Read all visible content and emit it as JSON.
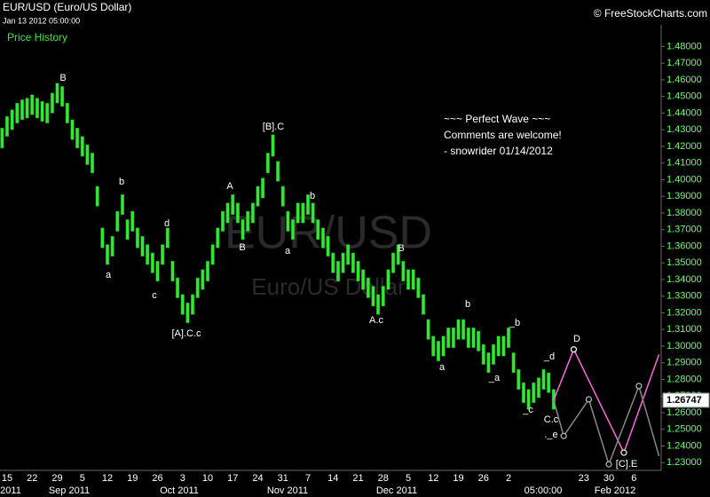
{
  "chart_data": {
    "type": "ohlc",
    "title": "EUR/USD (Euro/US Dollar)",
    "subtitle": "Jan 13 2012 05:00:00",
    "source": "© FreeStockCharts.com",
    "panel_label": "Price History",
    "watermark": [
      "EUR/USD",
      "Euro/US Dollar"
    ],
    "note": [
      "~~~ Perfect Wave ~~~",
      "Comments are welcome!",
      "- snowrider  01/14/2012"
    ],
    "categories": [
      null,
      "15",
      null,
      null,
      null,
      null,
      "22",
      null,
      null,
      null,
      null,
      "29",
      null,
      null,
      null,
      null,
      "5",
      null,
      null,
      null,
      null,
      "12",
      null,
      null,
      null,
      null,
      "19",
      null,
      null,
      null,
      null,
      "26",
      null,
      null,
      null,
      null,
      "3",
      null,
      null,
      null,
      null,
      "10",
      null,
      null,
      null,
      null,
      "17",
      null,
      null,
      null,
      null,
      "24",
      null,
      null,
      null,
      null,
      "31",
      null,
      null,
      null,
      null,
      "7",
      null,
      null,
      null,
      null,
      "14",
      null,
      null,
      null,
      null,
      "21",
      null,
      null,
      null,
      null,
      "28",
      null,
      null,
      null,
      null,
      "5",
      null,
      null,
      null,
      null,
      "12",
      null,
      null,
      null,
      null,
      "19",
      null,
      null,
      null,
      null,
      "26",
      null,
      null,
      null,
      null,
      "2",
      null,
      null,
      null,
      null,
      null,
      null,
      null,
      null,
      null,
      null,
      null,
      null,
      null,
      null,
      "23",
      null,
      null,
      null,
      null,
      "30",
      null,
      null,
      null,
      null,
      "6",
      null,
      null,
      null,
      null,
      null
    ],
    "period_labels": [
      "2011",
      "Sep 2011",
      "Oct 2011",
      "Nov 2011",
      "Dec 2011",
      "05:00:00",
      "Feb 2012"
    ],
    "series": [
      {
        "name": "EUR/USD",
        "color": "#33e833",
        "high": [
          1.431,
          1.438,
          1.442,
          1.446,
          1.448,
          1.449,
          1.451,
          1.449,
          1.447,
          1.446,
          1.452,
          1.458,
          1.456,
          1.446,
          1.436,
          1.431,
          1.426,
          1.421,
          1.416,
          1.396,
          1.371,
          1.361,
          1.366,
          1.381,
          1.391,
          1.376,
          1.381,
          1.371,
          1.366,
          1.361,
          1.356,
          1.351,
          1.361,
          1.371,
          1.351,
          1.341,
          1.331,
          1.326,
          1.331,
          1.341,
          1.346,
          1.351,
          1.361,
          1.371,
          1.381,
          1.386,
          1.391,
          1.386,
          1.376,
          1.381,
          1.386,
          1.396,
          1.401,
          1.416,
          1.427,
          1.411,
          1.396,
          1.381,
          1.376,
          1.386,
          1.386,
          1.391,
          1.386,
          1.376,
          1.371,
          1.366,
          1.356,
          1.351,
          1.356,
          1.361,
          1.356,
          1.351,
          1.346,
          1.341,
          1.336,
          1.331,
          1.336,
          1.346,
          1.356,
          1.361,
          1.351,
          1.346,
          1.346,
          1.341,
          1.331,
          1.316,
          1.306,
          1.303,
          1.306,
          1.311,
          1.311,
          1.316,
          1.316,
          1.311,
          1.311,
          1.309,
          1.301,
          1.296,
          1.301,
          1.306,
          1.306,
          1.311,
          1.296,
          1.286,
          1.278,
          1.274,
          1.278,
          1.281,
          1.286,
          1.284,
          1.274,
          null,
          null,
          null,
          null,
          null,
          null,
          null,
          null,
          null,
          null,
          null,
          null,
          null,
          null,
          null,
          null,
          null,
          null,
          null,
          null,
          null
        ],
        "low": [
          1.419,
          1.426,
          1.43,
          1.434,
          1.436,
          1.437,
          1.439,
          1.437,
          1.435,
          1.434,
          1.44,
          1.446,
          1.444,
          1.434,
          1.424,
          1.419,
          1.414,
          1.409,
          1.404,
          1.384,
          1.359,
          1.349,
          1.354,
          1.369,
          1.379,
          1.364,
          1.369,
          1.359,
          1.354,
          1.349,
          1.344,
          1.339,
          1.349,
          1.359,
          1.339,
          1.329,
          1.319,
          1.314,
          1.319,
          1.329,
          1.334,
          1.339,
          1.349,
          1.359,
          1.369,
          1.374,
          1.379,
          1.374,
          1.364,
          1.369,
          1.374,
          1.384,
          1.389,
          1.404,
          1.414,
          1.399,
          1.384,
          1.369,
          1.364,
          1.374,
          1.374,
          1.379,
          1.374,
          1.364,
          1.359,
          1.354,
          1.344,
          1.339,
          1.344,
          1.349,
          1.344,
          1.339,
          1.334,
          1.329,
          1.324,
          1.319,
          1.324,
          1.334,
          1.344,
          1.349,
          1.339,
          1.334,
          1.334,
          1.329,
          1.319,
          1.304,
          1.294,
          1.291,
          1.294,
          1.299,
          1.299,
          1.304,
          1.304,
          1.299,
          1.299,
          1.297,
          1.289,
          1.284,
          1.289,
          1.294,
          1.294,
          1.299,
          1.284,
          1.274,
          1.266,
          1.262,
          1.266,
          1.269,
          1.274,
          1.272,
          1.262,
          null,
          null,
          null,
          null,
          null,
          null,
          null,
          null,
          null,
          null,
          null,
          null,
          null,
          null,
          null,
          null,
          null,
          null,
          null,
          null,
          null
        ]
      }
    ],
    "forecasts": [
      {
        "color": "#ff66dd",
        "x": [
          110,
          114,
          124,
          131
        ],
        "values": [
          1.26747,
          1.298,
          1.236,
          1.295
        ]
      },
      {
        "color": "#888888",
        "x": [
          110,
          112,
          117,
          121,
          127,
          131
        ],
        "values": [
          1.26747,
          1.246,
          1.268,
          1.229,
          1.276,
          1.234
        ]
      }
    ],
    "wave_labels": [
      "B",
      "b",
      "a",
      "d",
      "c",
      "[A].C.c",
      "A",
      "B",
      "[B].C",
      "a",
      "b",
      "A.c",
      "B",
      "a",
      "b",
      "_a",
      "_b",
      "_c",
      "_d",
      "C.c",
      "._e",
      "D",
      "[C].E"
    ],
    "last_price": 1.26747,
    "ylim": [
      1.22,
      1.493
    ],
    "yticks": [
      {
        "value": 1.23,
        "label": "1.23000"
      },
      {
        "value": 1.24,
        "label": "1.24000"
      },
      {
        "value": 1.25,
        "label": "1.25000"
      },
      {
        "value": 1.26,
        "label": "1.26000"
      },
      {
        "value": 1.27,
        "label": "1.27000"
      },
      {
        "value": 1.28,
        "label": "1.28000"
      },
      {
        "value": 1.29,
        "label": "1.29000"
      },
      {
        "value": 1.3,
        "label": "1.30000"
      },
      {
        "value": 1.31,
        "label": "1.31000"
      },
      {
        "value": 1.32,
        "label": "1.32000"
      },
      {
        "value": 1.33,
        "label": "1.33000"
      },
      {
        "value": 1.34,
        "label": "1.34000"
      },
      {
        "value": 1.35,
        "label": "1.35000"
      },
      {
        "value": 1.36,
        "label": "1.36000"
      },
      {
        "value": 1.37,
        "label": "1.37000"
      },
      {
        "value": 1.38,
        "label": "1.38000"
      },
      {
        "value": 1.39,
        "label": "1.39000"
      },
      {
        "value": 1.4,
        "label": "1.40000"
      },
      {
        "value": 1.41,
        "label": "1.41000"
      },
      {
        "value": 1.42,
        "label": "1.42000"
      },
      {
        "value": 1.43,
        "label": "1.43000"
      },
      {
        "value": 1.44,
        "label": "1.44000"
      },
      {
        "value": 1.45,
        "label": "1.45000"
      },
      {
        "value": 1.46,
        "label": "1.46000"
      },
      {
        "value": 1.47,
        "label": "1.47000"
      },
      {
        "value": 1.48,
        "label": "1.48000"
      }
    ],
    "grid": false
  }
}
